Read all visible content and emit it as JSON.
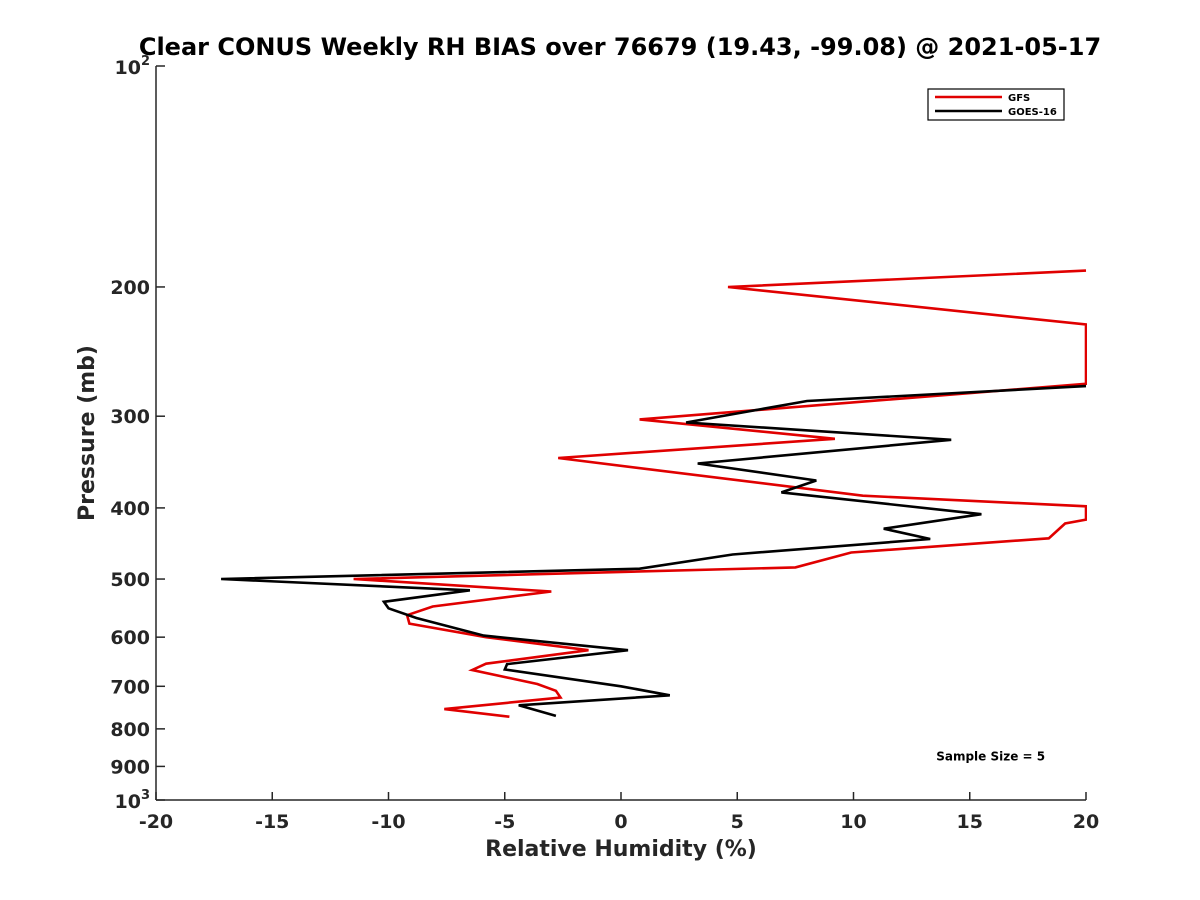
{
  "chart_data": {
    "type": "line",
    "title": "Clear CONUS Weekly RH BIAS over 76679 (19.43, -99.08) @ 2021-05-17",
    "xlabel": "Relative Humidity (%)",
    "ylabel": "Pressure (mb)",
    "xlim": [
      -20,
      20
    ],
    "ylim": [
      100,
      1000
    ],
    "y_scale": "log",
    "y_reversed": true,
    "grid": false,
    "legend_position": "top-right",
    "x_ticks": [
      "-20",
      "-15",
      "-10",
      "-5",
      "0",
      "5",
      "10",
      "15",
      "20"
    ],
    "y_ticks": [
      {
        "value": 100,
        "base": "10",
        "exp": "2"
      },
      {
        "value": 200,
        "label": "200"
      },
      {
        "value": 300,
        "label": "300"
      },
      {
        "value": 400,
        "label": "400"
      },
      {
        "value": 500,
        "label": "500"
      },
      {
        "value": 600,
        "label": "600"
      },
      {
        "value": 700,
        "label": "700"
      },
      {
        "value": 800,
        "label": "800"
      },
      {
        "value": 900,
        "label": "900"
      },
      {
        "value": 1000,
        "base": "10",
        "exp": "3"
      }
    ],
    "series": [
      {
        "name": "GFS",
        "color": "#e00000",
        "points": [
          [
            20,
            190
          ],
          [
            4.6,
            200
          ],
          [
            20,
            225
          ],
          [
            20,
            271
          ],
          [
            0.8,
            303
          ],
          [
            9.2,
            322
          ],
          [
            -2.7,
            342
          ],
          [
            10.4,
            385
          ],
          [
            20,
            398
          ],
          [
            20,
            415
          ],
          [
            19.1,
            420
          ],
          [
            18.4,
            440
          ],
          [
            9.9,
            460
          ],
          [
            7.5,
            482
          ],
          [
            -11.5,
            500
          ],
          [
            -3.0,
            520
          ],
          [
            -8.1,
            545
          ],
          [
            -9.2,
            560
          ],
          [
            -9.1,
            575
          ],
          [
            -5.8,
            600
          ],
          [
            -1.4,
            625
          ],
          [
            -5.8,
            652
          ],
          [
            -6.4,
            665
          ],
          [
            -3.6,
            695
          ],
          [
            -2.8,
            710
          ],
          [
            -2.6,
            725
          ],
          [
            -7.6,
            752
          ],
          [
            -4.8,
            770
          ]
        ]
      },
      {
        "name": "GOES-16",
        "color": "#000000",
        "points": [
          [
            20,
            273
          ],
          [
            8.0,
            286
          ],
          [
            2.8,
            306
          ],
          [
            14.2,
            323
          ],
          [
            3.3,
            348
          ],
          [
            8.4,
            367
          ],
          [
            6.9,
            381
          ],
          [
            15.5,
            408
          ],
          [
            11.3,
            427
          ],
          [
            13.3,
            441
          ],
          [
            4.8,
            463
          ],
          [
            0.8,
            484
          ],
          [
            -17.2,
            500
          ],
          [
            -6.5,
            518
          ],
          [
            -10.2,
            537
          ],
          [
            -10.0,
            548
          ],
          [
            -8.8,
            565
          ],
          [
            -5.9,
            597
          ],
          [
            0.3,
            625
          ],
          [
            -4.9,
            653
          ],
          [
            -5.0,
            664
          ],
          [
            0.0,
            700
          ],
          [
            2.1,
            720
          ],
          [
            -4.4,
            743
          ],
          [
            -2.8,
            768
          ]
        ]
      }
    ],
    "annotations": [
      {
        "text": "Sample Size = 5",
        "x": 15.9,
        "y": 900
      }
    ]
  }
}
